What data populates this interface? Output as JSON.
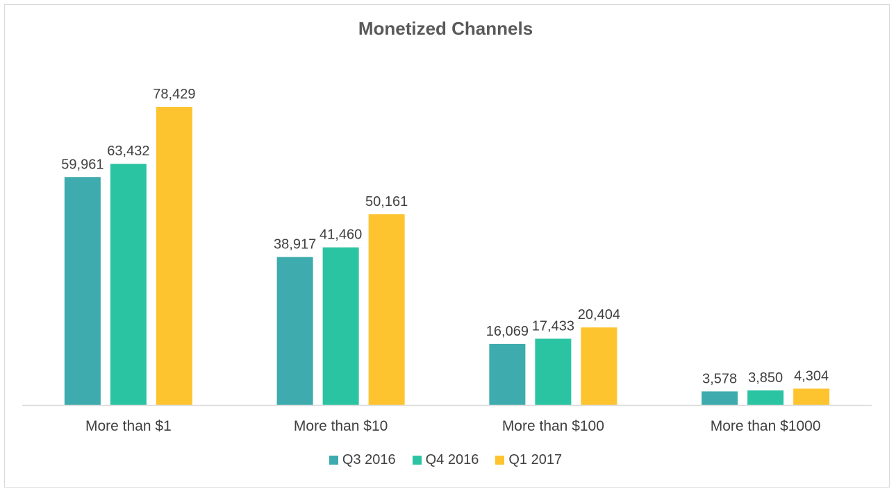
{
  "chart_data": {
    "type": "bar",
    "title": "Monetized Channels",
    "categories": [
      "More than $1",
      "More than $10",
      "More than $100",
      "More than $1000"
    ],
    "series": [
      {
        "name": "Q3 2016",
        "values": [
          59961,
          38917,
          16069,
          3578
        ],
        "labels": [
          "59,961",
          "38,917",
          "16,069",
          "3,578"
        ],
        "color": "#3eabae"
      },
      {
        "name": "Q4 2016",
        "values": [
          63432,
          41460,
          17433,
          3850
        ],
        "labels": [
          "63,432",
          "41,460",
          "17,433",
          "3,850"
        ],
        "color": "#2bc4a2"
      },
      {
        "name": "Q1 2017",
        "values": [
          78429,
          50161,
          20404,
          4304
        ],
        "labels": [
          "78,429",
          "50,161",
          "20,404",
          "4,304"
        ],
        "color": "#fec42f"
      }
    ],
    "ylim": [
      0,
      85000
    ],
    "grid": false,
    "legend_position": "bottom",
    "xlabel": "",
    "ylabel": ""
  }
}
